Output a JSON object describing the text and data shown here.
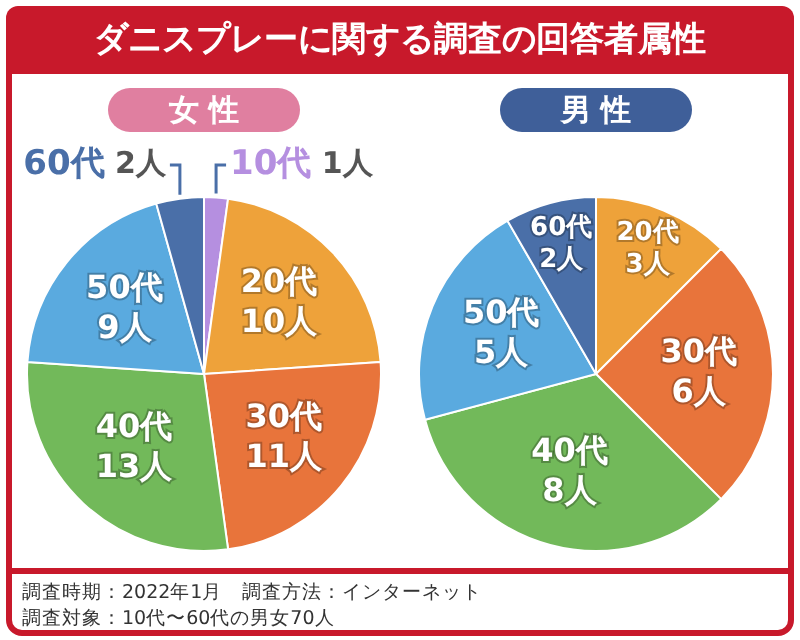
{
  "chart_data": [
    {
      "type": "pie",
      "title": "ダニスプレーに関する調査の回答者属性",
      "subtitle": "女 性",
      "categories": [
        "10代",
        "20代",
        "30代",
        "40代",
        "50代",
        "60代"
      ],
      "values": [
        1,
        10,
        11,
        13,
        9,
        2
      ],
      "colors": [
        "#b58fe0",
        "#eea23a",
        "#e8743b",
        "#72b95a",
        "#5aaadf",
        "#4a6fa8"
      ],
      "value_labels": [
        "1人",
        "10人",
        "11人",
        "13人",
        "9人",
        "2人"
      ],
      "annotations": [
        "調査時期：2022年1月　調査方法：インターネット",
        "調査対象：10代〜60代の男女70人"
      ]
    },
    {
      "type": "pie",
      "subtitle": "男 性",
      "categories": [
        "20代",
        "30代",
        "40代",
        "50代",
        "60代"
      ],
      "values": [
        3,
        6,
        8,
        5,
        2
      ],
      "colors": [
        "#eea23a",
        "#e8743b",
        "#72b95a",
        "#5aaadf",
        "#4a6fa8"
      ],
      "value_labels": [
        "3人",
        "6人",
        "8人",
        "5人",
        "2人"
      ]
    }
  ]
}
